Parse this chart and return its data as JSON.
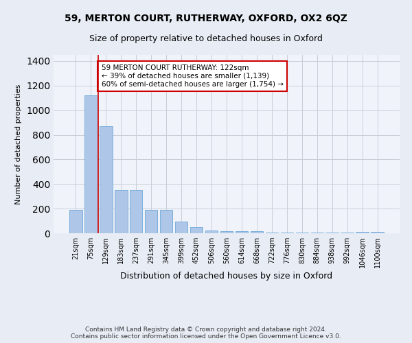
{
  "title1": "59, MERTON COURT, RUTHERWAY, OXFORD, OX2 6QZ",
  "title2": "Size of property relative to detached houses in Oxford",
  "xlabel": "Distribution of detached houses by size in Oxford",
  "ylabel": "Number of detached properties",
  "bar_values": [
    188,
    1120,
    868,
    353,
    352,
    187,
    188,
    97,
    52,
    21,
    18,
    15,
    18,
    7,
    7,
    5,
    7,
    4,
    3,
    10,
    10
  ],
  "bar_labels": [
    "21sqm",
    "75sqm",
    "129sqm",
    "183sqm",
    "237sqm",
    "291sqm",
    "345sqm",
    "399sqm",
    "452sqm",
    "506sqm",
    "560sqm",
    "614sqm",
    "668sqm",
    "722sqm",
    "776sqm",
    "830sqm",
    "884sqm",
    "938sqm",
    "992sqm",
    "1046sqm",
    "1100sqm"
  ],
  "bar_color": "#aec6e8",
  "bar_edge_color": "#5a9fd4",
  "vline_x": 1.5,
  "vline_color": "#cc0000",
  "annotation_text": "59 MERTON COURT RUTHERWAY: 122sqm\n← 39% of detached houses are smaller (1,139)\n60% of semi-detached houses are larger (1,754) →",
  "annotation_box_color": "#cc0000",
  "annotation_fill": "#ffffff",
  "ylim": [
    0,
    1450
  ],
  "yticks": [
    0,
    200,
    400,
    600,
    800,
    1000,
    1200,
    1400
  ],
  "footer": "Contains HM Land Registry data © Crown copyright and database right 2024.\nContains public sector information licensed under the Open Government Licence v3.0.",
  "bg_color": "#e8edf5",
  "plot_bg_color": "#f0f4fa"
}
